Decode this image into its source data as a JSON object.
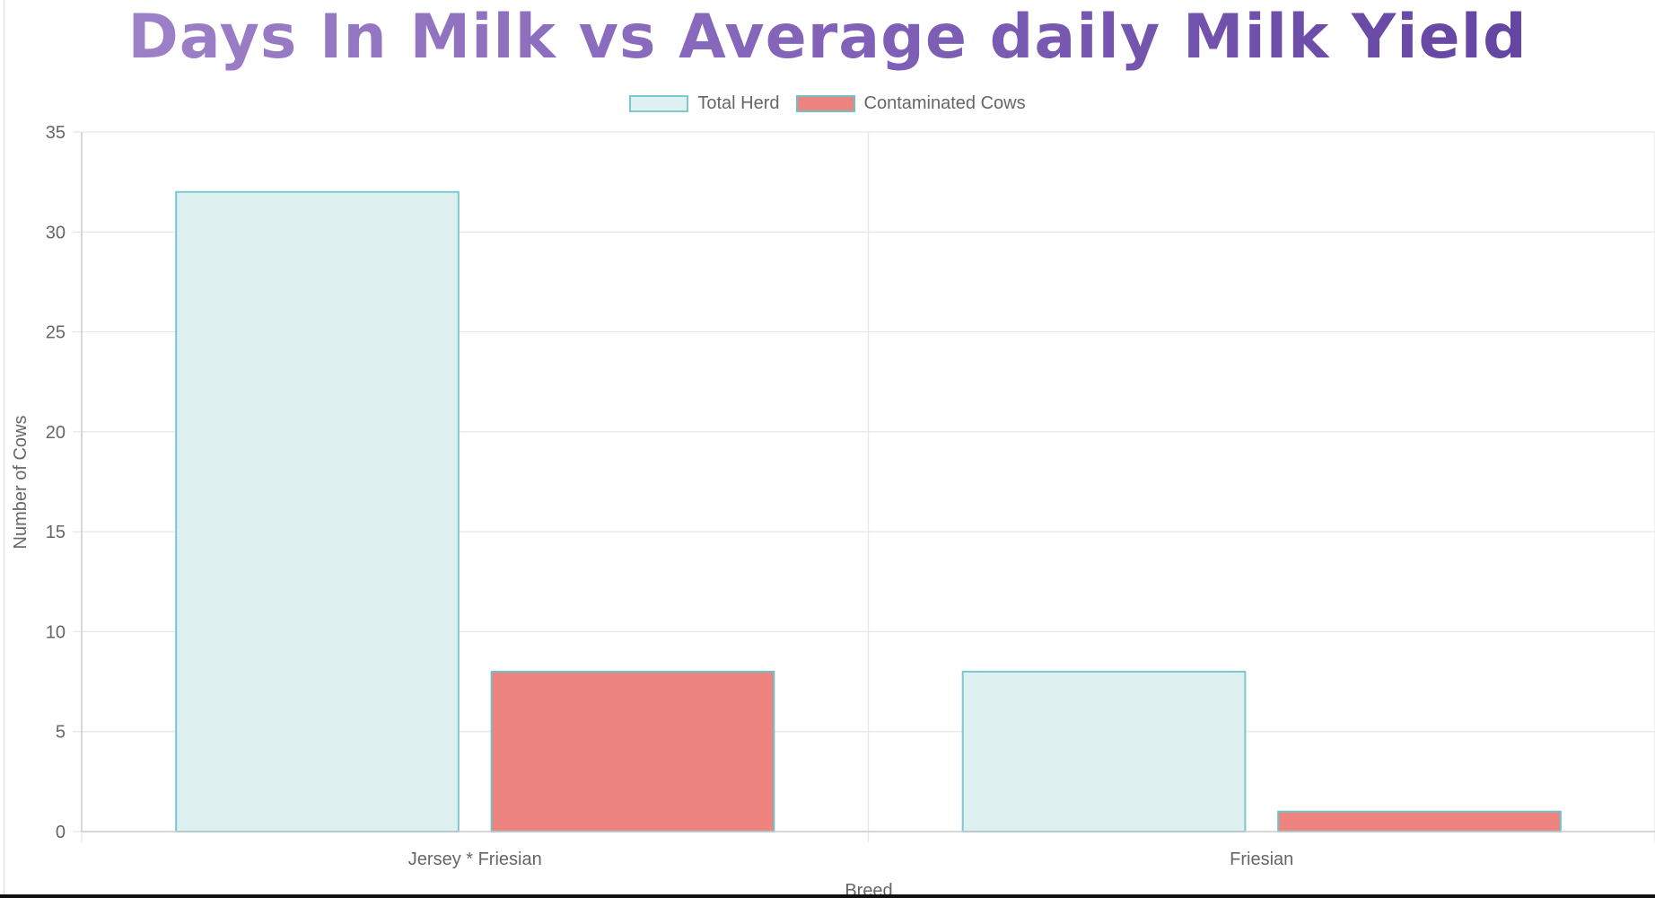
{
  "chart_data": {
    "type": "bar",
    "title": "Days In Milk vs Average daily Milk Yield",
    "xlabel": "Breed",
    "ylabel": "Number of Cows",
    "categories": [
      "Jersey * Friesian",
      "Friesian"
    ],
    "series": [
      {
        "name": "Total Herd",
        "values": [
          32,
          8
        ],
        "fill": "#dff0f1",
        "stroke": "#7cc8cf"
      },
      {
        "name": "Contaminated Cows",
        "values": [
          8,
          1
        ],
        "fill": "#ee8480",
        "stroke": "#6fc1c7"
      }
    ],
    "ylim": [
      0,
      35
    ],
    "yticks": [
      0,
      5,
      10,
      15,
      20,
      25,
      30,
      35
    ],
    "grid": true,
    "legend": "top-center",
    "colors": {
      "title": "#7c63b8",
      "grid": "#e6e6e6",
      "axis": "#cccccc",
      "text": "#666666"
    }
  }
}
